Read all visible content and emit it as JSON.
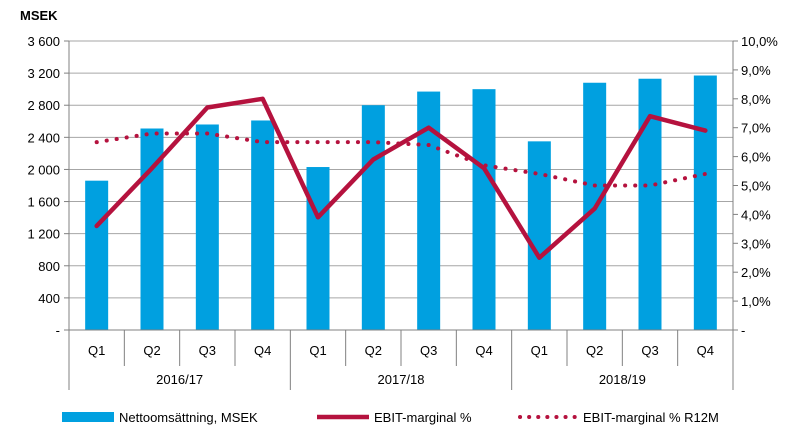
{
  "chart_data": {
    "type": "bar",
    "title": "",
    "ylabel": "MSEK",
    "y2label": "",
    "categories": [
      "Q1",
      "Q2",
      "Q3",
      "Q4",
      "Q1",
      "Q2",
      "Q3",
      "Q4",
      "Q1",
      "Q2",
      "Q3",
      "Q4"
    ],
    "groups": [
      "2016/17",
      "2017/18",
      "2018/19"
    ],
    "ylim": [
      0,
      3600
    ],
    "y2lim": [
      0,
      10
    ],
    "y_ticks": [
      "-",
      "400",
      "800",
      "1 200",
      "1 600",
      "2 000",
      "2 400",
      "2 800",
      "3 200",
      "3 600"
    ],
    "y2_ticks": [
      "-",
      "1,0%",
      "2,0%",
      "3,0%",
      "4,0%",
      "5,0%",
      "6,0%",
      "7,0%",
      "8,0%",
      "9,0%",
      "10,0%"
    ],
    "series": [
      {
        "name": "Nettoomsättning, MSEK",
        "type": "bar",
        "axis": "left",
        "color": "#00a0e0",
        "values": [
          1860,
          2510,
          2560,
          2610,
          2030,
          2800,
          2970,
          3000,
          2350,
          3080,
          3130,
          3170
        ]
      },
      {
        "name": "EBIT-marginal %",
        "type": "line",
        "axis": "right",
        "color": "#b5123e",
        "values": [
          3.6,
          5.6,
          7.7,
          8.0,
          3.9,
          5.9,
          7.0,
          5.6,
          2.5,
          4.2,
          7.4,
          6.9
        ]
      },
      {
        "name": "EBIT-marginal % R12M",
        "type": "dotted-line",
        "axis": "right",
        "color": "#b5123e",
        "values": [
          6.5,
          6.8,
          6.8,
          6.5,
          6.5,
          6.5,
          6.4,
          5.7,
          5.4,
          5.0,
          5.0,
          5.4
        ]
      }
    ],
    "grid": true,
    "legend_position": "bottom"
  }
}
